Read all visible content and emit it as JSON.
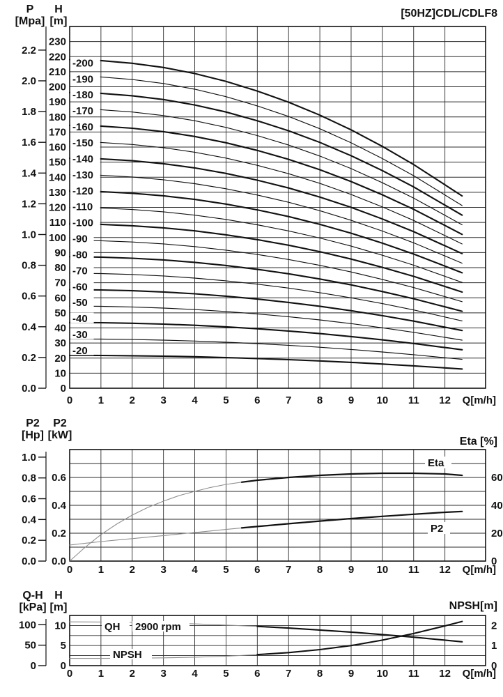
{
  "title": "[50HZ]CDL/CDLF8",
  "labels": {
    "hq": {
      "p_name": "P",
      "p_unit": "[Mpa]",
      "h_name": "H",
      "h_unit": "[m]",
      "x_label": "Q[m/h]"
    },
    "pe": {
      "hp_name": "P2",
      "hp_unit": "[Hp]",
      "kw_name": "P2",
      "kw_unit": "[kW]",
      "eta_label": "Eta [%]",
      "x_label": "Q[m/h]"
    },
    "np": {
      "kpa_name": "Q-H",
      "kpa_unit": "[kPa]",
      "m_name": "H",
      "m_unit": "[m]",
      "npsh_label": "NPSH[m]",
      "x_label": "Q[m/h]"
    }
  },
  "chart_data": [
    {
      "id": "hq-stage-curves",
      "type": "line",
      "title": "[50HZ]CDL/CDLF8",
      "xlabel": "Q[m/h]",
      "x_ticks": [
        0,
        1,
        2,
        3,
        4,
        5,
        6,
        7,
        8,
        9,
        10,
        11,
        12
      ],
      "x_edge": 13.3,
      "y_axis_H": {
        "label": "H [m]",
        "edge": 240,
        "grid_step": 10,
        "ticks": [
          "230",
          "220",
          "210",
          "200",
          "190",
          "180",
          "170",
          "160",
          "150",
          "140",
          "130",
          "120",
          "110",
          "100",
          "90",
          "80",
          "70",
          "60",
          "50",
          "40",
          "30",
          "20",
          "10",
          "0"
        ]
      },
      "y_axis_P": {
        "label": "P [Mpa]",
        "m_per_mpa": 101.97,
        "ticks": [
          "2.2",
          "2.0",
          "1.8",
          "1.6",
          "1.4",
          "1.2",
          "1.0",
          "0.8",
          "0.6",
          "0.4",
          "0.2",
          "0.0"
        ]
      },
      "q_points": [
        0,
        1,
        2,
        3,
        4,
        5,
        6,
        7,
        8,
        9,
        10,
        11,
        12,
        12.55
      ],
      "head_per_stage": [
        1.09,
        1.087,
        1.078,
        1.064,
        1.044,
        1.018,
        0.986,
        0.949,
        0.906,
        0.857,
        0.802,
        0.742,
        0.675,
        0.638
      ],
      "series": [
        {
          "label": "-200",
          "stages": 200
        },
        {
          "label": "-190",
          "stages": 190
        },
        {
          "label": "-180",
          "stages": 180
        },
        {
          "label": "-170",
          "stages": 170
        },
        {
          "label": "-160",
          "stages": 160
        },
        {
          "label": "-150",
          "stages": 150
        },
        {
          "label": "-140",
          "stages": 140
        },
        {
          "label": "-130",
          "stages": 130
        },
        {
          "label": "-120",
          "stages": 120
        },
        {
          "label": "-110",
          "stages": 110
        },
        {
          "label": "-100",
          "stages": 100
        },
        {
          "label": "-90",
          "stages": 90
        },
        {
          "label": "-80",
          "stages": 80
        },
        {
          "label": "-70",
          "stages": 70
        },
        {
          "label": "-60",
          "stages": 60
        },
        {
          "label": "-50",
          "stages": 50
        },
        {
          "label": "-40",
          "stages": 40
        },
        {
          "label": "-30",
          "stages": 30
        },
        {
          "label": "-20",
          "stages": 20
        }
      ]
    },
    {
      "id": "power-eta",
      "type": "line",
      "xlabel": "Q[m/h]",
      "x_ticks": [
        0,
        1,
        2,
        3,
        4,
        5,
        6,
        7,
        8,
        9,
        10,
        11,
        12
      ],
      "x_edge": 13.3,
      "y_axis_hp": {
        "label": "P2 [Hp]",
        "kw_per_hp": 0.7457,
        "ticks": [
          "1.0",
          "0.8",
          "0.6",
          "0.4",
          "0.2",
          "0.0"
        ]
      },
      "y_axis_kw": {
        "label": "P2 [kW]",
        "max": 0.8,
        "grid_step": 0.1,
        "ticks": [
          "0.6",
          "0.4",
          "0.2",
          "0.0"
        ]
      },
      "y_axis_eta": {
        "label": "Eta [%]",
        "max": 80,
        "ticks": [
          "60",
          "40",
          "20",
          "0"
        ]
      },
      "series": [
        {
          "name": "Eta",
          "unit": "%",
          "x": [
            0,
            0.5,
            1,
            1.5,
            2,
            2.5,
            3,
            3.5,
            4,
            4.5,
            5,
            5.5,
            6,
            7,
            8,
            9,
            10,
            11,
            12,
            12.55
          ],
          "y": [
            0,
            10,
            19,
            26.5,
            33,
            38.5,
            43,
            47,
            50,
            52.8,
            55,
            56.6,
            58,
            60,
            61.5,
            62.5,
            63,
            63,
            62.5,
            61.5
          ]
        },
        {
          "name": "P2",
          "unit": "kW",
          "x": [
            0,
            0.5,
            1,
            1.5,
            2,
            2.5,
            3,
            3.5,
            4,
            4.5,
            5,
            5.5,
            6,
            7,
            8,
            9,
            10,
            11,
            12,
            12.55
          ],
          "y": [
            0.115,
            0.128,
            0.14,
            0.151,
            0.161,
            0.172,
            0.183,
            0.194,
            0.205,
            0.216,
            0.227,
            0.238,
            0.248,
            0.268,
            0.287,
            0.305,
            0.321,
            0.336,
            0.35,
            0.356
          ]
        }
      ],
      "annotations": [
        {
          "text": "Eta"
        },
        {
          "text": "P2"
        }
      ]
    },
    {
      "id": "qh-npsh",
      "type": "line",
      "xlabel": "Q[m/h]",
      "x_ticks": [
        0,
        1,
        2,
        3,
        4,
        5,
        6,
        7,
        8,
        9,
        10,
        11,
        12
      ],
      "x_edge": 13.3,
      "y_axis_kpa": {
        "label": "Q-H [kPa]",
        "m_per_kpa": 0.10197,
        "ticks": [
          "100",
          "50",
          "0"
        ]
      },
      "y_axis_m": {
        "label": "H [m]",
        "max": 12.5,
        "grid_step": 2.5,
        "ticks": [
          "10",
          "5",
          "0"
        ]
      },
      "y_axis_npsh": {
        "label": "NPSH[m]",
        "max": 2.5,
        "ticks": [
          "2",
          "1",
          "0"
        ]
      },
      "series": [
        {
          "name": "QH",
          "unit": "m",
          "x": [
            0,
            1,
            2,
            3,
            4,
            5,
            6,
            7,
            8,
            9,
            10,
            11,
            12,
            12.55
          ],
          "y": [
            10.9,
            10.87,
            10.77,
            10.62,
            10.4,
            10.11,
            9.77,
            9.36,
            8.88,
            8.35,
            7.75,
            7.09,
            6.36,
            5.94
          ]
        },
        {
          "name": "NPSH",
          "unit": "m(NPSH)",
          "x": [
            0,
            1,
            2,
            3,
            4,
            5,
            6,
            7,
            8,
            9,
            10,
            11,
            12,
            12.55
          ],
          "y": [
            0.36,
            0.36,
            0.37,
            0.39,
            0.42,
            0.47,
            0.55,
            0.65,
            0.8,
            1.0,
            1.27,
            1.6,
            1.98,
            2.2
          ]
        }
      ],
      "annotations": [
        {
          "text": "QH"
        },
        {
          "text": "2900 rpm"
        },
        {
          "text": "NPSH"
        }
      ]
    }
  ]
}
